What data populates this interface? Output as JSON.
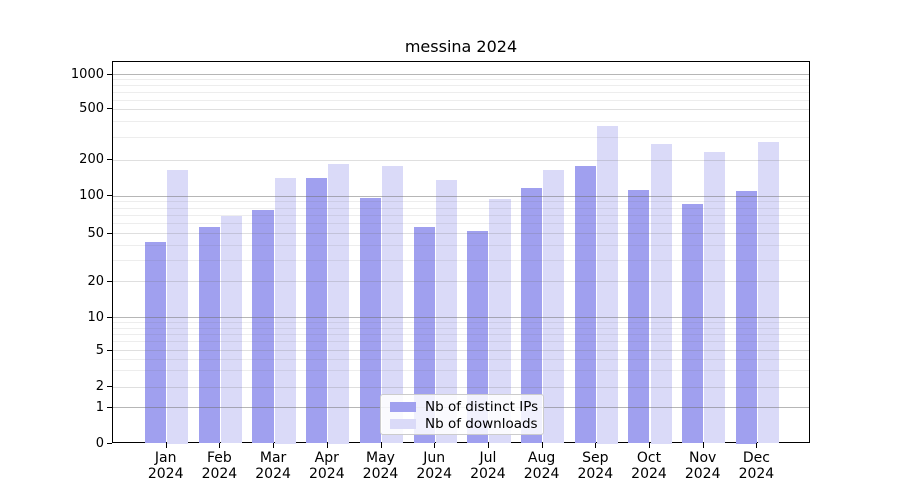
{
  "title": "messina 2024",
  "chart_data": {
    "type": "bar",
    "title": "messina 2024",
    "categories": [
      "Jan 2024",
      "Feb 2024",
      "Mar 2024",
      "Apr 2024",
      "May 2024",
      "Jun 2024",
      "Jul 2024",
      "Aug 2024",
      "Sep 2024",
      "Oct 2024",
      "Nov 2024",
      "Dec 2024"
    ],
    "series": [
      {
        "name": "Nb of distinct IPs",
        "color": "#a0a0ef",
        "values": [
          42,
          56,
          77,
          141,
          96,
          56,
          52,
          115,
          175,
          112,
          85,
          110
        ]
      },
      {
        "name": "Nb of downloads",
        "color": "#dadaf8",
        "values": [
          165,
          69,
          140,
          185,
          176,
          135,
          93,
          163,
          370,
          265,
          228,
          276
        ]
      }
    ],
    "yscale": "symlog",
    "y_ticks": [
      0,
      1,
      2,
      5,
      10,
      20,
      50,
      100,
      200,
      500,
      1000
    ],
    "ylim": [
      0,
      1280
    ],
    "xlabel": "",
    "ylabel": "",
    "grid": "on",
    "legend_position": "lower center"
  }
}
